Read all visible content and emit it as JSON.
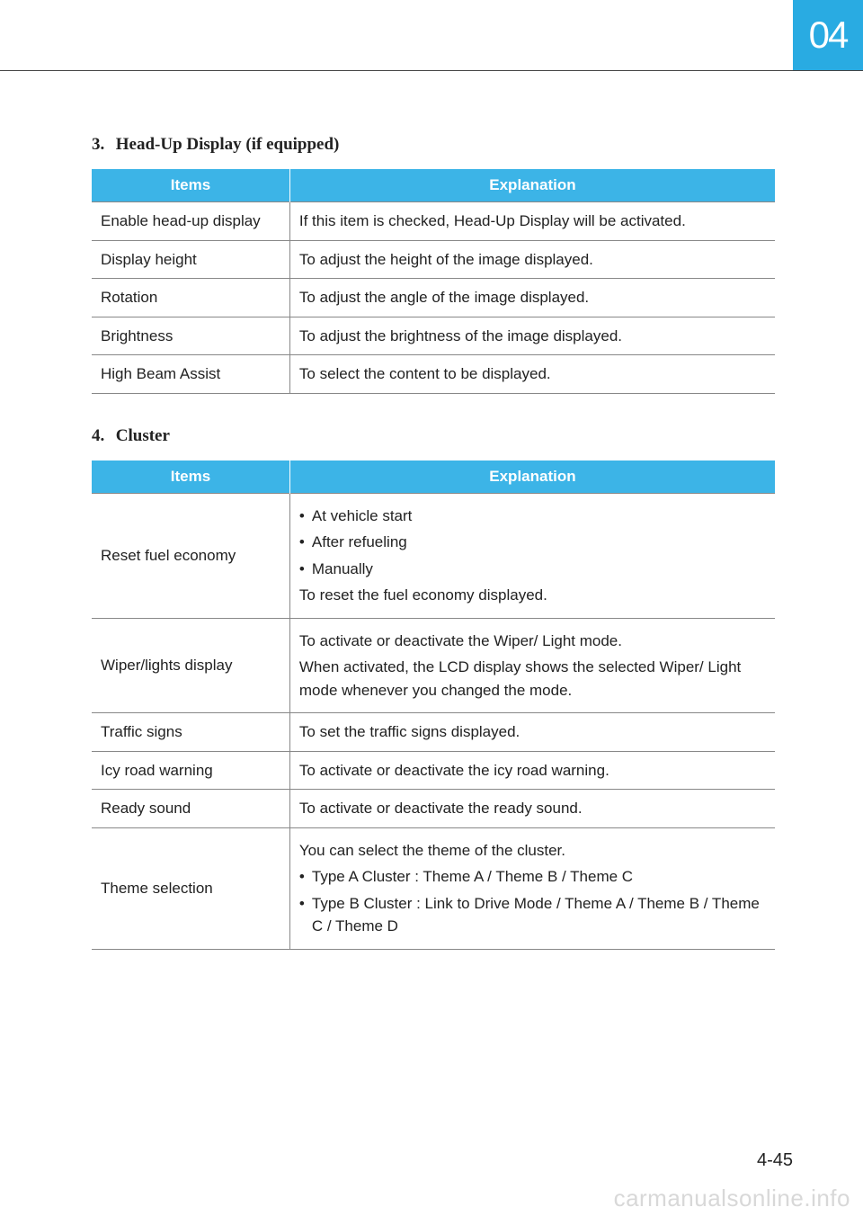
{
  "chapter_tab": "04",
  "page_number": "4-45",
  "watermark": "carmanualsonline.info",
  "section3": {
    "number": "3.",
    "title": "Head-Up Display (if equipped)",
    "header_items": "Items",
    "header_expl": "Explanation",
    "rows": [
      {
        "item": "Enable head-up display",
        "expl": "If this item is checked, Head-Up Display will be activated."
      },
      {
        "item": "Display height",
        "expl": "To adjust the height of the image displayed."
      },
      {
        "item": "Rotation",
        "expl": "To adjust the angle of the image displayed."
      },
      {
        "item": "Brightness",
        "expl": "To adjust the brightness of the image displayed."
      },
      {
        "item": "High Beam Assist",
        "expl": "To select the content to be displayed."
      }
    ]
  },
  "section4": {
    "number": "4.",
    "title": "Cluster",
    "header_items": "Items",
    "header_expl": "Explanation",
    "row0": {
      "item": "Reset fuel economy",
      "bullets": [
        "At vehicle start",
        "After refueling",
        "Manually"
      ],
      "footer": "To reset the fuel economy displayed."
    },
    "row1": {
      "item": "Wiper/lights display",
      "line1": "To activate or deactivate the Wiper/ Light mode.",
      "line2": "When activated, the LCD display shows the selected Wiper/ Light mode whenever you changed the mode."
    },
    "row2": {
      "item": "Traffic signs",
      "expl": "To set the traffic signs displayed."
    },
    "row3": {
      "item": "Icy road warning",
      "expl": "To activate or deactivate the icy road warning."
    },
    "row4": {
      "item": "Ready sound",
      "expl": "To activate or deactivate the ready sound."
    },
    "row5": {
      "item": "Theme selection",
      "intro": "You can select the theme of the cluster.",
      "bullet1": "Type A Cluster : Theme A / Theme B / Theme C",
      "bullet2": "Type B Cluster : Link to Drive Mode / Theme A / Theme B / Theme C / Theme D"
    }
  },
  "colors": {
    "accent": "#3cb4e7",
    "tab": "#29abe2",
    "border": "#888888",
    "text": "#222222",
    "watermark": "#d8d8d8"
  }
}
